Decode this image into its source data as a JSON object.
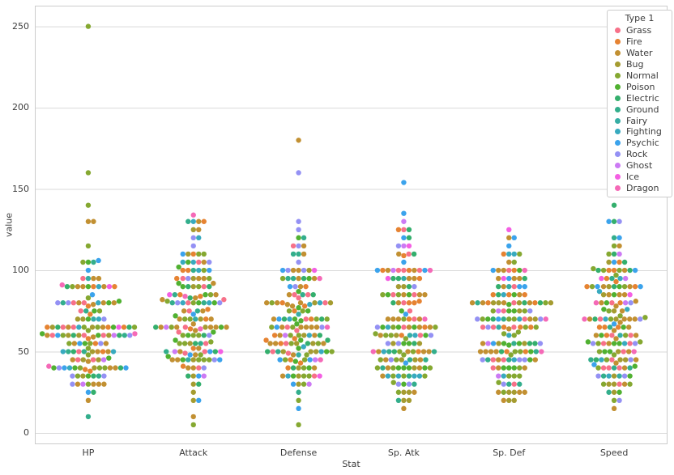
{
  "chart_data": {
    "type": "swarm",
    "title": "",
    "xlabel": "Stat",
    "ylabel": "value",
    "categories": [
      "HP",
      "Attack",
      "Defense",
      "Sp. Atk",
      "Sp. Def",
      "Speed"
    ],
    "y_ticks": [
      0,
      50,
      100,
      150,
      200,
      250
    ],
    "ylim": [
      -7,
      263
    ],
    "grid": "horizontal",
    "grid_color": "#d9d9d9",
    "spine_color": "#cccccc",
    "text_color": "#3c3c3c",
    "legend": {
      "title": "Type 1",
      "position": "upper right",
      "entries": [
        {
          "label": "Grass",
          "color": "#f77189"
        },
        {
          "label": "Fire",
          "color": "#e68332"
        },
        {
          "label": "Water",
          "color": "#c29032"
        },
        {
          "label": "Bug",
          "color": "#a59c31"
        },
        {
          "label": "Normal",
          "color": "#85a831"
        },
        {
          "label": "Poison",
          "color": "#50b131"
        },
        {
          "label": "Electric",
          "color": "#34af6d"
        },
        {
          "label": "Ground",
          "color": "#33ae8c"
        },
        {
          "label": "Fairy",
          "color": "#36ada4"
        },
        {
          "label": "Fighting",
          "color": "#38aabf"
        },
        {
          "label": "Psychic",
          "color": "#3ba3ec"
        },
        {
          "label": "Rock",
          "color": "#9491f4"
        },
        {
          "label": "Ghost",
          "color": "#cc7af4"
        },
        {
          "label": "Ice",
          "color": "#f45fe3"
        },
        {
          "label": "Dragon",
          "color": "#f569b7"
        }
      ]
    },
    "point_key": [
      "type",
      "HP",
      "Attack",
      "Defense",
      "Sp. Atk",
      "Sp. Def",
      "Speed"
    ],
    "points": [
      [
        "Grass",
        45,
        49,
        49,
        65,
        65,
        45
      ],
      [
        "Grass",
        60,
        62,
        63,
        80,
        80,
        60
      ],
      [
        "Grass",
        80,
        82,
        83,
        100,
        100,
        80
      ],
      [
        "Fire",
        39,
        52,
        43,
        60,
        50,
        65
      ],
      [
        "Fire",
        58,
        64,
        58,
        80,
        65,
        80
      ],
      [
        "Fire",
        78,
        84,
        78,
        109,
        85,
        100
      ],
      [
        "Water",
        44,
        48,
        65,
        50,
        64,
        43
      ],
      [
        "Water",
        59,
        63,
        80,
        65,
        80,
        58
      ],
      [
        "Water",
        79,
        83,
        100,
        85,
        105,
        78
      ],
      [
        "Bug",
        45,
        30,
        35,
        20,
        20,
        45
      ],
      [
        "Bug",
        50,
        20,
        55,
        25,
        25,
        30
      ],
      [
        "Bug",
        60,
        45,
        50,
        90,
        80,
        70
      ],
      [
        "Bug",
        40,
        35,
        30,
        20,
        20,
        50
      ],
      [
        "Bug",
        45,
        25,
        50,
        25,
        25,
        35
      ],
      [
        "Bug",
        65,
        90,
        40,
        45,
        80,
        75
      ],
      [
        "Normal",
        40,
        45,
        40,
        35,
        35,
        56
      ],
      [
        "Normal",
        63,
        60,
        55,
        50,
        50,
        71
      ],
      [
        "Normal",
        83,
        80,
        75,
        70,
        70,
        101
      ],
      [
        "Normal",
        30,
        56,
        35,
        25,
        35,
        72
      ],
      [
        "Normal",
        55,
        81,
        60,
        50,
        70,
        97
      ],
      [
        "Normal",
        40,
        60,
        30,
        31,
        31,
        70
      ],
      [
        "Normal",
        65,
        90,
        65,
        61,
        61,
        100
      ],
      [
        "Poison",
        35,
        60,
        44,
        40,
        54,
        55
      ],
      [
        "Poison",
        60,
        85,
        69,
        65,
        79,
        80
      ],
      [
        "Electric",
        35,
        55,
        40,
        50,
        50,
        90
      ],
      [
        "Electric",
        60,
        90,
        55,
        90,
        80,
        110
      ],
      [
        "Ground",
        50,
        75,
        85,
        20,
        30,
        40
      ],
      [
        "Ground",
        75,
        100,
        110,
        45,
        55,
        65
      ],
      [
        "Poison",
        55,
        47,
        52,
        40,
        40,
        41
      ],
      [
        "Poison",
        70,
        62,
        67,
        55,
        55,
        56
      ],
      [
        "Poison",
        90,
        92,
        87,
        75,
        85,
        76
      ],
      [
        "Poison",
        46,
        57,
        40,
        40,
        40,
        50
      ],
      [
        "Poison",
        61,
        72,
        57,
        55,
        55,
        65
      ],
      [
        "Poison",
        81,
        102,
        77,
        85,
        75,
        85
      ],
      [
        "Fairy",
        70,
        45,
        48,
        60,
        65,
        35
      ],
      [
        "Fairy",
        95,
        70,
        73,
        95,
        90,
        60
      ],
      [
        "Fire",
        38,
        41,
        40,
        50,
        65,
        65
      ],
      [
        "Fire",
        73,
        76,
        75,
        81,
        100,
        100
      ],
      [
        "Normal",
        115,
        45,
        20,
        45,
        25,
        20
      ],
      [
        "Normal",
        140,
        70,
        45,
        85,
        50,
        45
      ],
      [
        "Poison",
        40,
        45,
        35,
        30,
        40,
        55
      ],
      [
        "Poison",
        75,
        80,
        70,
        65,
        75,
        90
      ],
      [
        "Grass",
        45,
        50,
        55,
        75,
        65,
        30
      ],
      [
        "Grass",
        60,
        65,
        70,
        85,
        75,
        40
      ],
      [
        "Grass",
        75,
        80,
        85,
        110,
        90,
        50
      ],
      [
        "Bug",
        35,
        70,
        55,
        45,
        55,
        25
      ],
      [
        "Bug",
        60,
        95,
        80,
        60,
        80,
        30
      ],
      [
        "Bug",
        60,
        55,
        50,
        40,
        55,
        45
      ],
      [
        "Bug",
        70,
        65,
        60,
        90,
        75,
        90
      ],
      [
        "Ground",
        10,
        55,
        25,
        35,
        45,
        95
      ],
      [
        "Ground",
        35,
        80,
        50,
        50,
        70,
        120
      ],
      [
        "Normal",
        40,
        45,
        35,
        40,
        40,
        90
      ],
      [
        "Normal",
        65,
        70,
        60,
        65,
        65,
        115
      ],
      [
        "Water",
        50,
        52,
        48,
        65,
        50,
        55
      ],
      [
        "Water",
        80,
        82,
        78,
        95,
        80,
        85
      ],
      [
        "Fighting",
        40,
        80,
        35,
        35,
        45,
        70
      ],
      [
        "Fighting",
        65,
        105,
        60,
        60,
        70,
        95
      ],
      [
        "Fire",
        55,
        70,
        45,
        70,
        50,
        60
      ],
      [
        "Fire",
        90,
        110,
        80,
        100,
        80,
        95
      ],
      [
        "Water",
        40,
        50,
        40,
        40,
        40,
        90
      ],
      [
        "Water",
        65,
        65,
        65,
        50,
        50,
        90
      ],
      [
        "Water",
        90,
        95,
        95,
        70,
        90,
        70
      ],
      [
        "Psychic",
        25,
        20,
        15,
        105,
        55,
        90
      ],
      [
        "Psychic",
        40,
        35,
        30,
        120,
        70,
        105
      ],
      [
        "Psychic",
        55,
        50,
        45,
        135,
        95,
        120
      ],
      [
        "Fighting",
        70,
        80,
        50,
        35,
        35,
        35
      ],
      [
        "Fighting",
        80,
        100,
        70,
        50,
        60,
        45
      ],
      [
        "Fighting",
        90,
        130,
        80,
        65,
        85,
        55
      ],
      [
        "Grass",
        50,
        75,
        35,
        70,
        30,
        40
      ],
      [
        "Grass",
        65,
        90,
        50,
        85,
        45,
        55
      ],
      [
        "Grass",
        80,
        105,
        65,
        100,
        70,
        70
      ],
      [
        "Water",
        40,
        40,
        35,
        50,
        100,
        70
      ],
      [
        "Water",
        80,
        70,
        65,
        80,
        120,
        100
      ],
      [
        "Rock",
        40,
        80,
        100,
        30,
        30,
        20
      ],
      [
        "Rock",
        55,
        95,
        115,
        45,
        45,
        35
      ],
      [
        "Rock",
        80,
        120,
        130,
        55,
        65,
        45
      ],
      [
        "Fire",
        50,
        85,
        55,
        65,
        65,
        90
      ],
      [
        "Fire",
        65,
        100,
        70,
        80,
        80,
        105
      ],
      [
        "Water",
        90,
        65,
        65,
        40,
        40,
        15
      ],
      [
        "Water",
        95,
        75,
        110,
        100,
        80,
        30
      ],
      [
        "Electric",
        25,
        35,
        70,
        95,
        55,
        45
      ],
      [
        "Electric",
        50,
        60,
        95,
        120,
        70,
        70
      ],
      [
        "Normal",
        52,
        65,
        55,
        58,
        62,
        60
      ],
      [
        "Normal",
        35,
        85,
        45,
        35,
        35,
        75
      ],
      [
        "Normal",
        60,
        110,
        70,
        60,
        60,
        100
      ],
      [
        "Water",
        65,
        45,
        55,
        45,
        70,
        45
      ],
      [
        "Water",
        90,
        70,
        80,
        70,
        95,
        70
      ],
      [
        "Poison",
        80,
        80,
        50,
        40,
        50,
        25
      ],
      [
        "Poison",
        105,
        105,
        75,
        65,
        100,
        50
      ],
      [
        "Water",
        30,
        65,
        100,
        45,
        25,
        40
      ],
      [
        "Water",
        50,
        95,
        180,
        85,
        45,
        70
      ],
      [
        "Ghost",
        30,
        35,
        30,
        100,
        35,
        80
      ],
      [
        "Ghost",
        45,
        50,
        45,
        115,
        55,
        95
      ],
      [
        "Ghost",
        60,
        65,
        60,
        130,
        75,
        110
      ],
      [
        "Rock",
        35,
        45,
        160,
        30,
        45,
        70
      ],
      [
        "Psychic",
        60,
        48,
        45,
        43,
        90,
        42
      ],
      [
        "Psychic",
        85,
        73,
        70,
        73,
        115,
        67
      ],
      [
        "Water",
        30,
        105,
        90,
        25,
        25,
        50
      ],
      [
        "Water",
        55,
        130,
        115,
        50,
        50,
        75
      ],
      [
        "Electric",
        40,
        30,
        50,
        55,
        55,
        100
      ],
      [
        "Electric",
        60,
        50,
        70,
        80,
        80,
        140
      ],
      [
        "Grass",
        60,
        40,
        80,
        60,
        45,
        40
      ],
      [
        "Grass",
        95,
        95,
        85,
        125,
        65,
        55
      ],
      [
        "Ground",
        50,
        50,
        95,
        40,
        50,
        35
      ],
      [
        "Ground",
        60,
        80,
        110,
        50,
        80,
        45
      ],
      [
        "Fighting",
        50,
        120,
        53,
        35,
        110,
        87
      ],
      [
        "Fighting",
        50,
        105,
        79,
        35,
        110,
        76
      ],
      [
        "Normal",
        90,
        55,
        75,
        60,
        75,
        30
      ],
      [
        "Poison",
        40,
        65,
        95,
        60,
        45,
        35
      ],
      [
        "Poison",
        65,
        90,
        120,
        85,
        70,
        60
      ],
      [
        "Ground",
        80,
        85,
        95,
        30,
        30,
        25
      ],
      [
        "Ground",
        105,
        130,
        120,
        45,
        45,
        40
      ],
      [
        "Normal",
        250,
        5,
        5,
        35,
        105,
        50
      ],
      [
        "Grass",
        65,
        55,
        115,
        100,
        40,
        60
      ],
      [
        "Normal",
        105,
        95,
        80,
        40,
        80,
        90
      ],
      [
        "Water",
        30,
        40,
        70,
        70,
        25,
        60
      ],
      [
        "Water",
        55,
        65,
        95,
        95,
        45,
        85
      ],
      [
        "Water",
        45,
        67,
        60,
        35,
        50,
        63
      ],
      [
        "Water",
        80,
        92,
        65,
        65,
        80,
        68
      ],
      [
        "Water",
        30,
        45,
        55,
        70,
        55,
        85
      ],
      [
        "Water",
        60,
        75,
        85,
        100,
        85,
        115
      ],
      [
        "Psychic",
        40,
        45,
        65,
        100,
        120,
        90
      ],
      [
        "Bug",
        70,
        110,
        80,
        55,
        80,
        105
      ],
      [
        "Ice",
        65,
        50,
        35,
        115,
        95,
        95
      ],
      [
        "Electric",
        65,
        83,
        57,
        95,
        85,
        105
      ],
      [
        "Fire",
        65,
        95,
        57,
        100,
        85,
        93
      ],
      [
        "Bug",
        65,
        125,
        100,
        55,
        70,
        85
      ],
      [
        "Normal",
        75,
        100,
        95,
        40,
        70,
        110
      ],
      [
        "Water",
        20,
        10,
        55,
        15,
        20,
        80
      ],
      [
        "Water",
        95,
        125,
        79,
        60,
        100,
        81
      ],
      [
        "Water",
        130,
        85,
        80,
        85,
        95,
        60
      ],
      [
        "Normal",
        48,
        48,
        48,
        48,
        48,
        48
      ],
      [
        "Normal",
        55,
        55,
        50,
        45,
        65,
        55
      ],
      [
        "Water",
        130,
        65,
        60,
        110,
        95,
        65
      ],
      [
        "Electric",
        65,
        65,
        60,
        110,
        95,
        130
      ],
      [
        "Fire",
        65,
        130,
        60,
        95,
        110,
        65
      ],
      [
        "Normal",
        65,
        60,
        70,
        85,
        75,
        40
      ],
      [
        "Rock",
        35,
        40,
        100,
        90,
        55,
        35
      ],
      [
        "Rock",
        70,
        60,
        125,
        115,
        70,
        55
      ],
      [
        "Rock",
        30,
        80,
        90,
        55,
        45,
        55
      ],
      [
        "Rock",
        60,
        115,
        105,
        65,
        70,
        80
      ],
      [
        "Rock",
        80,
        105,
        65,
        60,
        75,
        130
      ],
      [
        "Normal",
        160,
        110,
        65,
        65,
        110,
        30
      ],
      [
        "Ice",
        90,
        85,
        100,
        95,
        125,
        85
      ],
      [
        "Electric",
        90,
        90,
        85,
        125,
        90,
        100
      ],
      [
        "Fire",
        90,
        100,
        90,
        125,
        85,
        90
      ],
      [
        "Dragon",
        41,
        64,
        45,
        50,
        50,
        50
      ],
      [
        "Dragon",
        61,
        84,
        65,
        70,
        70,
        70
      ],
      [
        "Dragon",
        91,
        134,
        95,
        100,
        100,
        80
      ],
      [
        "Psychic",
        106,
        110,
        90,
        154,
        90,
        130
      ],
      [
        "Psychic",
        100,
        100,
        100,
        100,
        100,
        100
      ]
    ]
  }
}
